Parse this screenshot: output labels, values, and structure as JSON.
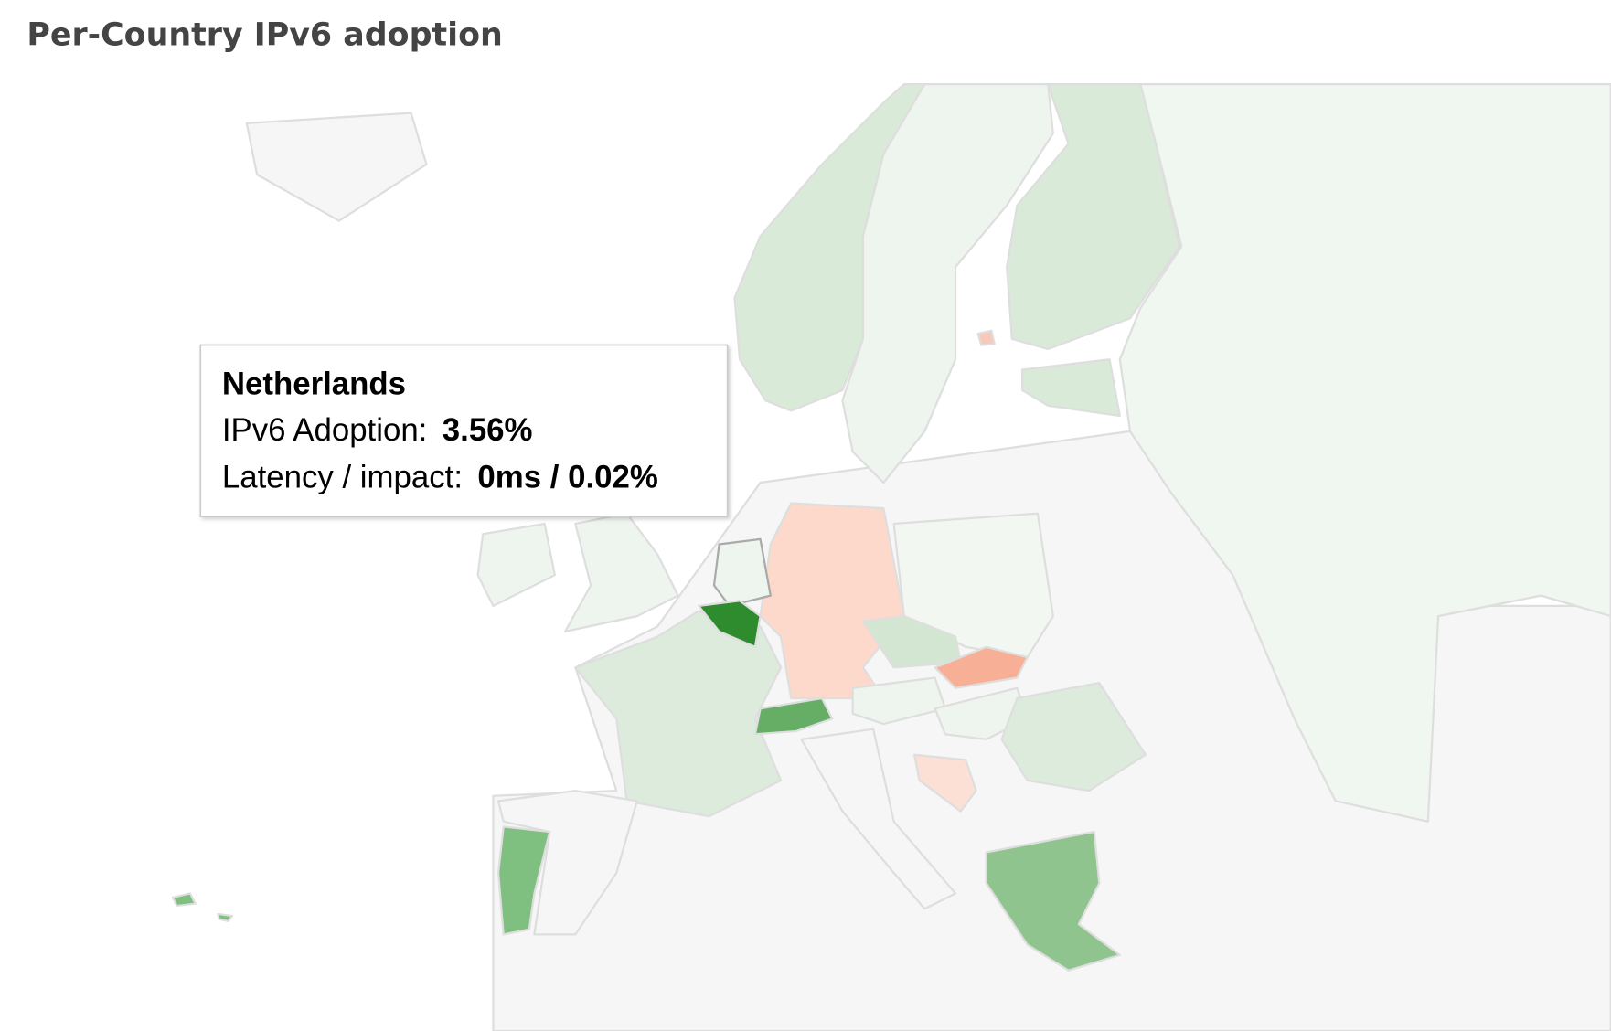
{
  "header": {
    "title": "Per-Country IPv6 adoption"
  },
  "tooltip": {
    "country": "Netherlands",
    "rows": [
      {
        "label": "IPv6 Adoption:",
        "value": "3.56%"
      },
      {
        "label": "Latency / impact:",
        "value": "0ms / 0.02%"
      }
    ]
  }
}
